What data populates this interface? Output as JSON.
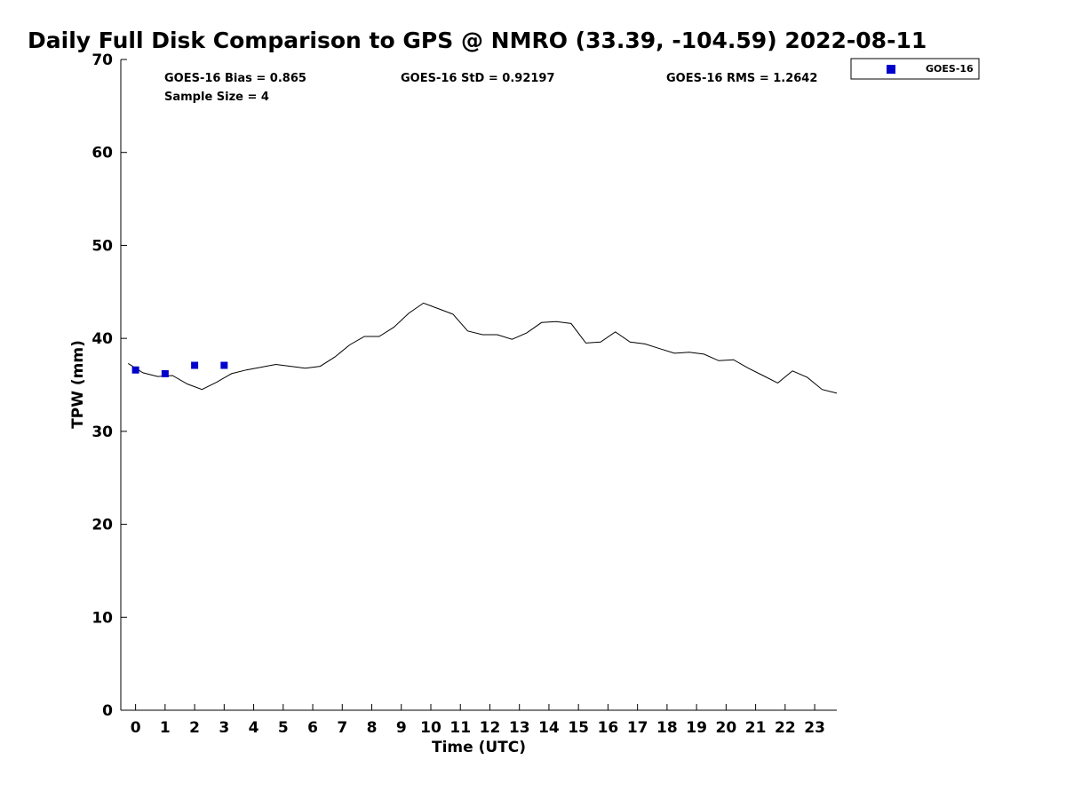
{
  "chart_data": {
    "type": "line",
    "title": "Daily Full Disk Comparison to GPS @ NMRO (33.39, -104.59) 2022-08-11",
    "xlabel": "Time (UTC)",
    "ylabel": "TPW (mm)",
    "xlim": [
      -0.5,
      23.75
    ],
    "ylim": [
      0,
      70
    ],
    "x_ticks": [
      0,
      1,
      2,
      3,
      4,
      5,
      6,
      7,
      8,
      9,
      10,
      11,
      12,
      13,
      14,
      15,
      16,
      17,
      18,
      19,
      20,
      21,
      22,
      23
    ],
    "y_ticks": [
      0,
      10,
      20,
      30,
      40,
      50,
      60,
      70
    ],
    "grid": false,
    "legend_position": "top-right-outside",
    "stats": {
      "bias": "GOES-16 Bias = 0.865",
      "std": "GOES-16 StD = 0.92197",
      "rms": "GOES-16 RMS = 1.2642",
      "sample_size": "Sample Size = 4"
    },
    "series": [
      {
        "type": "line",
        "color": "#000000",
        "x": [
          -0.25,
          0.25,
          0.75,
          1.25,
          1.75,
          2.25,
          2.75,
          3.25,
          3.75,
          4.25,
          4.75,
          5.25,
          5.75,
          6.25,
          6.75,
          7.25,
          7.75,
          8.25,
          8.75,
          9.25,
          9.75,
          10.25,
          10.75,
          11.25,
          11.75,
          12.25,
          12.75,
          13.25,
          13.75,
          14.25,
          14.75,
          15.25,
          15.75,
          16.25,
          16.75,
          17.25,
          17.75,
          18.25,
          18.75,
          19.25,
          19.75,
          20.25,
          20.75,
          21.25,
          21.75,
          22.25,
          22.75,
          23.25,
          23.75
        ],
        "values": [
          37.3,
          36.3,
          35.9,
          36.0,
          35.1,
          34.5,
          35.3,
          36.2,
          36.6,
          36.9,
          37.2,
          37.0,
          36.8,
          37.0,
          38.0,
          39.3,
          40.2,
          40.2,
          41.2,
          42.7,
          43.8,
          43.2,
          42.6,
          40.8,
          40.4,
          40.4,
          39.9,
          40.6,
          41.7,
          41.8,
          41.6,
          39.5,
          39.6,
          40.7,
          39.6,
          39.4,
          38.9,
          38.4,
          38.5,
          38.3,
          37.6,
          37.7,
          36.8,
          36.0,
          35.2,
          36.5,
          35.8,
          34.5,
          34.1
        ]
      },
      {
        "name": "GOES-16",
        "type": "scatter",
        "marker": "square",
        "color": "#0000cc",
        "x": [
          0,
          1,
          2,
          3
        ],
        "values": [
          36.6,
          36.2,
          37.1,
          37.1
        ]
      }
    ]
  }
}
